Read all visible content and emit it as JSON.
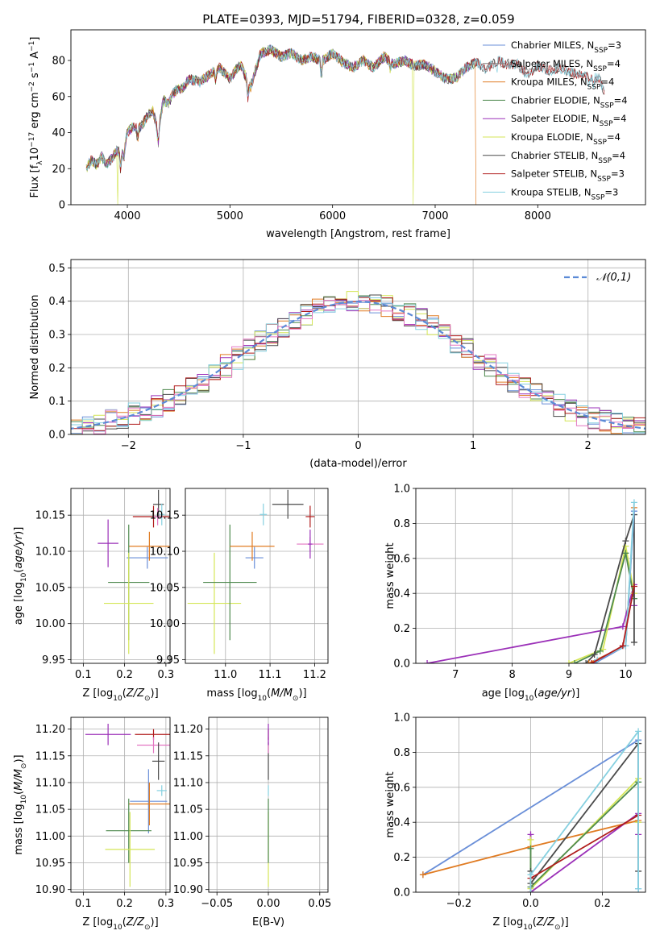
{
  "figure": {
    "title": "PLATE=0393, MJD=51794, FIBERID=0328, z=0.059"
  },
  "colors": {
    "Chabrier MILES": "#6a8fd8",
    "Salpeter MILES": "#7f7f7f",
    "Kroupa MILES": "#e07b22",
    "Chabrier ELODIE": "#4f8a4f",
    "Salpeter ELODIE": "#9b30b8",
    "Kroupa ELODIE": "#d4e657",
    "Chabrier STELIB": "#4a4a4a",
    "Salpeter STELIB": "#b01c1c",
    "Kroupa STELIB": "#86d0e0",
    "pink": "#e377c2"
  },
  "chart_data": [
    {
      "id": "spectrum",
      "type": "line",
      "xlabel": "wavelength [Angstrom, rest frame]",
      "ylabel": "Flux [f_λ10^-17 erg cm^-2 s^-1 A^-1]",
      "xlim": [
        3450,
        9050
      ],
      "ylim": [
        0,
        97
      ],
      "xticks": [
        4000,
        5000,
        6000,
        7000,
        8000
      ],
      "yticks": [
        0,
        20,
        40,
        60,
        80
      ],
      "legend_position": "upper-right",
      "legend": [
        {
          "prefix": "Chabrier MILES, N",
          "sub": "SSP",
          "suffix": "=3"
        },
        {
          "prefix": "Salpeter MILES, N",
          "sub": "SSP",
          "suffix": "=4"
        },
        {
          "prefix": "Kroupa MILES, N",
          "sub": "SSP",
          "suffix": "=4"
        },
        {
          "prefix": "Chabrier ELODIE, N",
          "sub": "SSP",
          "suffix": "=4"
        },
        {
          "prefix": "Salpeter ELODIE, N",
          "sub": "SSP",
          "suffix": "=4"
        },
        {
          "prefix": "Kroupa ELODIE, N",
          "sub": "SSP",
          "suffix": "=4"
        },
        {
          "prefix": "Chabrier STELIB, N",
          "sub": "SSP",
          "suffix": "=4"
        },
        {
          "prefix": "Salpeter STELIB, N",
          "sub": "SSP",
          "suffix": "=3"
        },
        {
          "prefix": "Kroupa STELIB, N",
          "sub": "SSP",
          "suffix": "=3"
        }
      ],
      "envelope": [
        [
          3600,
          20
        ],
        [
          3650,
          25
        ],
        [
          3700,
          22
        ],
        [
          3750,
          27
        ],
        [
          3800,
          22
        ],
        [
          3850,
          26
        ],
        [
          3900,
          30
        ],
        [
          3950,
          28
        ],
        [
          4000,
          40
        ],
        [
          4050,
          43
        ],
        [
          4100,
          42
        ],
        [
          4150,
          45
        ],
        [
          4200,
          50
        ],
        [
          4250,
          52
        ],
        [
          4300,
          40
        ],
        [
          4350,
          58
        ],
        [
          4400,
          56
        ],
        [
          4450,
          62
        ],
        [
          4500,
          64
        ],
        [
          4550,
          65
        ],
        [
          4600,
          70
        ],
        [
          4700,
          68
        ],
        [
          4800,
          72
        ],
        [
          4900,
          76
        ],
        [
          5000,
          70
        ],
        [
          5100,
          78
        ],
        [
          5200,
          65
        ],
        [
          5300,
          84
        ],
        [
          5400,
          86
        ],
        [
          5500,
          82
        ],
        [
          5600,
          84
        ],
        [
          5700,
          80
        ],
        [
          5800,
          82
        ],
        [
          5900,
          80
        ],
        [
          6000,
          84
        ],
        [
          6100,
          79
        ],
        [
          6200,
          76
        ],
        [
          6300,
          80
        ],
        [
          6400,
          76
        ],
        [
          6500,
          82
        ],
        [
          6600,
          78
        ],
        [
          6700,
          80
        ],
        [
          6800,
          77
        ],
        [
          6900,
          78
        ],
        [
          7000,
          74
        ],
        [
          7100,
          70
        ],
        [
          7200,
          70
        ],
        [
          7300,
          76
        ],
        [
          7400,
          79
        ],
        [
          7500,
          75
        ],
        [
          7600,
          80
        ],
        [
          7700,
          78
        ],
        [
          7800,
          78
        ],
        [
          7900,
          72
        ],
        [
          8000,
          77
        ],
        [
          8100,
          74
        ],
        [
          8200,
          76
        ],
        [
          8300,
          74
        ],
        [
          8400,
          72
        ],
        [
          8500,
          71
        ],
        [
          8600,
          70
        ],
        [
          8650,
          62
        ]
      ],
      "model_drops": [
        {
          "model": "Kroupa ELODIE",
          "x": 3905
        },
        {
          "model": "Kroupa ELODIE",
          "x": 6785
        },
        {
          "model": "Kroupa MILES",
          "x": 7400
        }
      ]
    },
    {
      "id": "residual-histogram",
      "type": "area",
      "xlabel": "(data-model)/error",
      "ylabel": "Normed distribution",
      "xlim": [
        -2.5,
        2.5
      ],
      "ylim": [
        0,
        0.525
      ],
      "xticks": [
        -2,
        -1,
        0,
        1,
        2
      ],
      "yticks": [
        0.0,
        0.1,
        0.2,
        0.3,
        0.4,
        0.5
      ],
      "bin_width": 0.1,
      "legend_position": "upper-right",
      "reference": {
        "label": "𝒩(0,1)",
        "mean": 0,
        "sigma": 1
      }
    },
    {
      "id": "age-vs-Z",
      "type": "scatter",
      "xlabel": "Z [log10(Z/Z⊙)]",
      "ylabel": "age [log10(age/yr)]",
      "xlim": [
        0.07,
        0.31
      ],
      "ylim": [
        9.945,
        10.187
      ],
      "xticks": [
        0.1,
        0.2,
        0.3
      ],
      "yticks": [
        9.95,
        10.0,
        10.05,
        10.1,
        10.15
      ],
      "points": [
        {
          "model": "Salpeter ELODIE",
          "x": 0.16,
          "y": 10.111,
          "xerr": 0.025,
          "yerr": 0.033
        },
        {
          "model": "Chabrier MILES",
          "x": 0.255,
          "y": 10.091,
          "xerr": 0.05,
          "yerr": 0.015
        },
        {
          "model": "Kroupa MILES",
          "x": 0.26,
          "y": 10.107,
          "xerr": 0.05,
          "yerr": 0.02
        },
        {
          "model": "Salpeter STELIB",
          "x": 0.27,
          "y": 10.148,
          "xerr": 0.05,
          "yerr": 0.015
        },
        {
          "model": "Chabrier STELIB",
          "x": 0.282,
          "y": 10.165,
          "xerr": 0.013,
          "yerr": 0.02
        },
        {
          "model": "Kroupa STELIB",
          "x": 0.29,
          "y": 10.151,
          "xerr": 0.007,
          "yerr": 0.015
        },
        {
          "model": "pink",
          "x": 0.28,
          "y": 10.148,
          "xerr": 0.01,
          "yerr": 0.012
        },
        {
          "model": "Chabrier ELODIE",
          "x": 0.21,
          "y": 10.057,
          "xerr": 0.05,
          "yerr": 0.08
        },
        {
          "model": "Kroupa ELODIE",
          "x": 0.21,
          "y": 10.028,
          "xerr": 0.06,
          "yerr": 0.07
        }
      ]
    },
    {
      "id": "age-vs-mass",
      "type": "scatter",
      "xlabel": "mass [log10(M/M⊙)]",
      "ylabel": "",
      "xlim": [
        10.91,
        11.23
      ],
      "ylim": [
        9.945,
        10.187
      ],
      "xticks": [
        11.0,
        11.1,
        11.2
      ],
      "yticks": [
        9.95,
        10.0,
        10.05,
        10.1,
        10.15
      ],
      "points": [
        {
          "model": "Kroupa ELODIE",
          "x": 10.975,
          "y": 10.028,
          "xerr": 0.06,
          "yerr": 0.07
        },
        {
          "model": "Chabrier ELODIE",
          "x": 11.01,
          "y": 10.057,
          "xerr": 0.06,
          "yerr": 0.08
        },
        {
          "model": "Chabrier MILES",
          "x": 11.065,
          "y": 10.091,
          "xerr": 0.02,
          "yerr": 0.015
        },
        {
          "model": "Kroupa MILES",
          "x": 11.06,
          "y": 10.107,
          "xerr": 0.05,
          "yerr": 0.02
        },
        {
          "model": "Kroupa STELIB",
          "x": 11.085,
          "y": 10.151,
          "xerr": 0.008,
          "yerr": 0.015
        },
        {
          "model": "Chabrier STELIB",
          "x": 11.14,
          "y": 10.165,
          "xerr": 0.035,
          "yerr": 0.02
        },
        {
          "model": "Salpeter STELIB",
          "x": 11.19,
          "y": 10.148,
          "xerr": 0.01,
          "yerr": 0.015
        },
        {
          "model": "pink",
          "x": 11.19,
          "y": 10.11,
          "xerr": 0.03,
          "yerr": 0.01
        },
        {
          "model": "Salpeter ELODIE",
          "x": 11.19,
          "y": 10.11,
          "xerr": 0.005,
          "yerr": 0.02
        }
      ]
    },
    {
      "id": "mass-weight-vs-age",
      "type": "line",
      "xlabel": "age [log10(age/yr)]",
      "ylabel": "mass weight",
      "xlim": [
        6.3,
        10.35
      ],
      "ylim": [
        0,
        1.0
      ],
      "xticks": [
        7,
        8,
        9,
        10
      ],
      "yticks": [
        0.0,
        0.2,
        0.4,
        0.6,
        0.8,
        1.0
      ],
      "series": [
        {
          "model": "Salpeter ELODIE",
          "x": [
            6.5,
            9.95,
            10.15,
            10.15
          ],
          "y": [
            0.0,
            0.21,
            0.45,
            0.33
          ]
        },
        {
          "model": "Kroupa ELODIE",
          "x": [
            9.0,
            9.6,
            10.0,
            10.15
          ],
          "y": [
            0.0,
            0.08,
            0.67,
            0.4
          ]
        },
        {
          "model": "Chabrier ELODIE",
          "x": [
            9.1,
            9.55,
            10.0,
            10.15
          ],
          "y": [
            0.0,
            0.07,
            0.63,
            0.37
          ]
        },
        {
          "model": "Chabrier STELIB",
          "x": [
            9.3,
            9.45,
            10.0,
            10.15,
            10.15
          ],
          "y": [
            0.0,
            0.05,
            0.7,
            0.85,
            0.12
          ]
        },
        {
          "model": "Kroupa MILES",
          "x": [
            9.35,
            10.0,
            10.15
          ],
          "y": [
            0.0,
            0.1,
            0.89
          ]
        },
        {
          "model": "Chabrier MILES",
          "x": [
            9.45,
            10.0,
            10.15
          ],
          "y": [
            0.0,
            0.1,
            0.87
          ]
        },
        {
          "model": "Kroupa STELIB",
          "x": [
            9.5,
            10.0,
            10.15
          ],
          "y": [
            0.02,
            0.1,
            0.92
          ]
        },
        {
          "model": "Salpeter STELIB",
          "x": [
            9.4,
            9.95,
            10.15
          ],
          "y": [
            0.0,
            0.1,
            0.44
          ]
        }
      ]
    },
    {
      "id": "mass-vs-Z",
      "type": "scatter",
      "xlabel": "Z [log10(Z/Z⊙)]",
      "ylabel": "mass [log10(M/M⊙)]",
      "xlim": [
        0.07,
        0.31
      ],
      "ylim": [
        10.895,
        11.222
      ],
      "xticks": [
        0.1,
        0.2,
        0.3
      ],
      "yticks": [
        10.9,
        10.95,
        11.0,
        11.05,
        11.1,
        11.15,
        11.2
      ],
      "points": [
        {
          "model": "Salpeter ELODIE",
          "x": 0.16,
          "y": 11.19,
          "xerr": 0.055,
          "yerr": 0.02
        },
        {
          "model": "Salpeter STELIB",
          "x": 0.27,
          "y": 11.19,
          "xerr": 0.045,
          "yerr": 0.01
        },
        {
          "model": "pink",
          "x": 0.27,
          "y": 11.17,
          "xerr": 0.04,
          "yerr": 0.015
        },
        {
          "model": "Chabrier STELIB",
          "x": 0.282,
          "y": 11.14,
          "xerr": 0.015,
          "yerr": 0.035
        },
        {
          "model": "Kroupa STELIB",
          "x": 0.29,
          "y": 11.085,
          "xerr": 0.012,
          "yerr": 0.01
        },
        {
          "model": "Chabrier MILES",
          "x": 0.258,
          "y": 11.065,
          "xerr": 0.045,
          "yerr": 0.06
        },
        {
          "model": "Kroupa MILES",
          "x": 0.26,
          "y": 11.06,
          "xerr": 0.05,
          "yerr": 0.04
        },
        {
          "model": "Chabrier ELODIE",
          "x": 0.21,
          "y": 11.01,
          "xerr": 0.055,
          "yerr": 0.06
        },
        {
          "model": "Kroupa ELODIE",
          "x": 0.213,
          "y": 10.975,
          "xerr": 0.06,
          "yerr": 0.07
        }
      ]
    },
    {
      "id": "mass-vs-EBV",
      "type": "scatter",
      "xlabel": "E(B-V)",
      "ylabel": "",
      "xlim": [
        -0.058,
        0.058
      ],
      "ylim": [
        10.895,
        11.222
      ],
      "xticks": [
        -0.05,
        0.0,
        0.05
      ],
      "xticklabels": [
        "−0.05",
        "0.00",
        "0.05"
      ],
      "yticks": [
        10.9,
        10.95,
        11.0,
        11.05,
        11.1,
        11.15,
        11.2
      ],
      "points": [
        {
          "model": "Kroupa ELODIE",
          "x": 0,
          "y": 10.975,
          "xerr": 0,
          "yerr": 0.07
        },
        {
          "model": "Chabrier ELODIE",
          "x": 0,
          "y": 11.01,
          "xerr": 0,
          "yerr": 0.06
        },
        {
          "model": "Kroupa STELIB",
          "x": 0,
          "y": 11.085,
          "xerr": 0,
          "yerr": 0.01
        },
        {
          "model": "Chabrier STELIB",
          "x": 0,
          "y": 11.14,
          "xerr": 0,
          "yerr": 0.035
        },
        {
          "model": "pink",
          "x": 0,
          "y": 11.17,
          "xerr": 0,
          "yerr": 0.015
        },
        {
          "model": "Salpeter STELIB",
          "x": 0,
          "y": 11.19,
          "xerr": 0,
          "yerr": 0.01
        },
        {
          "model": "Salpeter ELODIE",
          "x": 0,
          "y": 11.19,
          "xerr": 0,
          "yerr": 0.02
        }
      ]
    },
    {
      "id": "mass-weight-vs-Z",
      "type": "line",
      "xlabel": "Z [log10(Z/Z⊙)]",
      "ylabel": "mass weight",
      "xlim": [
        -0.32,
        0.32
      ],
      "ylim": [
        0,
        1.0
      ],
      "xticks": [
        -0.2,
        0.0,
        0.2
      ],
      "xticklabels": [
        "−0.2",
        "0.0",
        "0.2"
      ],
      "yticks": [
        0.0,
        0.2,
        0.4,
        0.6,
        0.8,
        1.0
      ],
      "series": [
        {
          "model": "Chabrier MILES",
          "x": [
            -0.3,
            0.3,
            0.3
          ],
          "y": [
            0.1,
            0.87,
            0.02
          ]
        },
        {
          "model": "Kroupa MILES",
          "x": [
            -0.3,
            0.0,
            0.3
          ],
          "y": [
            0.1,
            0.26,
            0.41
          ]
        },
        {
          "model": "Salpeter ELODIE",
          "x": [
            0.0,
            0.0,
            0.3,
            0.3
          ],
          "y": [
            0.33,
            0.0,
            0.45,
            0.33
          ]
        },
        {
          "model": "Kroupa ELODIE",
          "x": [
            0.0,
            0.0,
            0.3,
            0.3
          ],
          "y": [
            0.3,
            0.02,
            0.65,
            0.4
          ]
        },
        {
          "model": "Chabrier ELODIE",
          "x": [
            0.0,
            0.0,
            0.3
          ],
          "y": [
            0.25,
            0.03,
            0.63
          ]
        },
        {
          "model": "Chabrier STELIB",
          "x": [
            0.0,
            0.0,
            0.3,
            0.3
          ],
          "y": [
            0.12,
            0.05,
            0.85,
            0.12
          ]
        },
        {
          "model": "Salpeter STELIB",
          "x": [
            0.0,
            0.0,
            0.3
          ],
          "y": [
            0.0,
            0.08,
            0.44
          ]
        },
        {
          "model": "Kroupa STELIB",
          "x": [
            0.0,
            0.0,
            0.3,
            0.3
          ],
          "y": [
            0.0,
            0.1,
            0.92,
            0.02
          ]
        }
      ]
    }
  ]
}
